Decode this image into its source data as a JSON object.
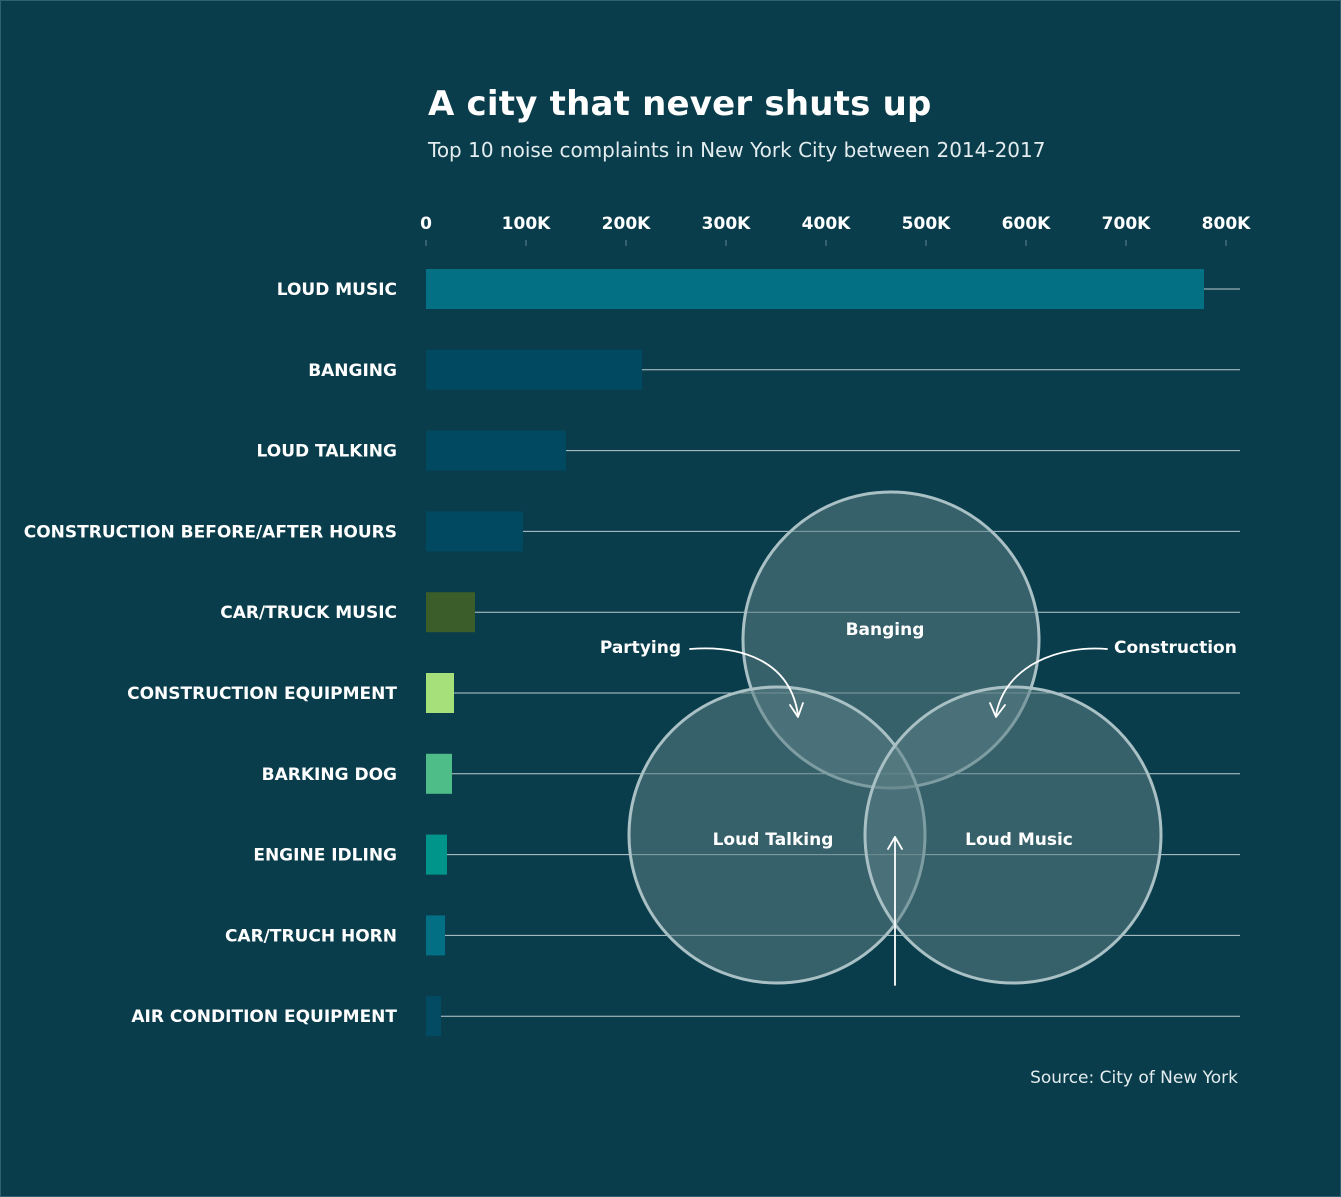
{
  "title": "A city that never shuts up",
  "subtitle": "Top 10 noise complaints in New York City between 2014-2017",
  "source": "Source: City of New York",
  "chart_data": {
    "type": "bar",
    "orientation": "horizontal",
    "xlim": [
      0,
      800000
    ],
    "ticks": [
      {
        "value": 0,
        "label": "0"
      },
      {
        "value": 100000,
        "label": "100K"
      },
      {
        "value": 200000,
        "label": "200K"
      },
      {
        "value": 300000,
        "label": "300K"
      },
      {
        "value": 400000,
        "label": "400K"
      },
      {
        "value": 500000,
        "label": "500K"
      },
      {
        "value": 600000,
        "label": "600K"
      },
      {
        "value": 700000,
        "label": "700K"
      },
      {
        "value": 800000,
        "label": "800K"
      }
    ],
    "tick_position": "top",
    "grid": "horizontal row lines",
    "categories": [
      "LOUD MUSIC",
      "BANGING",
      "LOUD TALKING",
      "CONSTRUCTION BEFORE/AFTER HOURS",
      "CAR/TRUCK MUSIC",
      "CONSTRUCTION EQUIPMENT",
      "BARKING DOG",
      "ENGINE IDLING",
      "CAR/TRUCH HORN",
      "AIR CONDITION EQUIPMENT"
    ],
    "values": [
      778000,
      216000,
      140000,
      97000,
      49000,
      28000,
      26000,
      21000,
      19000,
      15000
    ],
    "colors": [
      "#047083",
      "#004960",
      "#004960",
      "#004960",
      "#3b5d2a",
      "#a5e07a",
      "#4ebd88",
      "#00958a",
      "#036f85",
      "#034b62"
    ]
  },
  "venn": {
    "sets": [
      {
        "label": "Banging"
      },
      {
        "label": "Loud Talking"
      },
      {
        "label": "Loud Music"
      }
    ],
    "annotations": [
      {
        "label": "Partying"
      },
      {
        "label": "Construction"
      }
    ],
    "fill_color": "#5b7f85",
    "stroke_color": "#a9c0c5"
  }
}
